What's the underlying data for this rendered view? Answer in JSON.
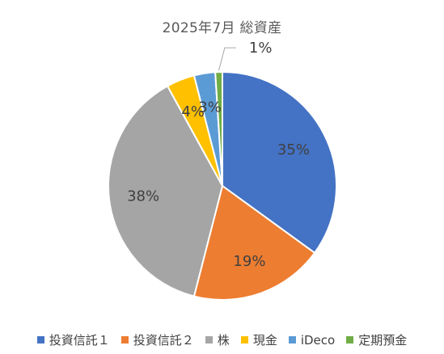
{
  "chart_data": {
    "type": "pie",
    "title": "2025年7月 総資産",
    "categories": [
      "投資信託１",
      "投資信託２",
      "株",
      "現金",
      "iDeco",
      "定期預金"
    ],
    "values": [
      35,
      19,
      38,
      4,
      3,
      1
    ],
    "labels": [
      "35%",
      "19%",
      "38%",
      "4%",
      "3%",
      "1%"
    ],
    "colors": [
      "#4472C4",
      "#ED7D31",
      "#A5A5A5",
      "#FFC000",
      "#5B9BD5",
      "#70AD47"
    ],
    "legend_position": "bottom",
    "start_angle_deg": 0,
    "direction": "clockwise"
  }
}
